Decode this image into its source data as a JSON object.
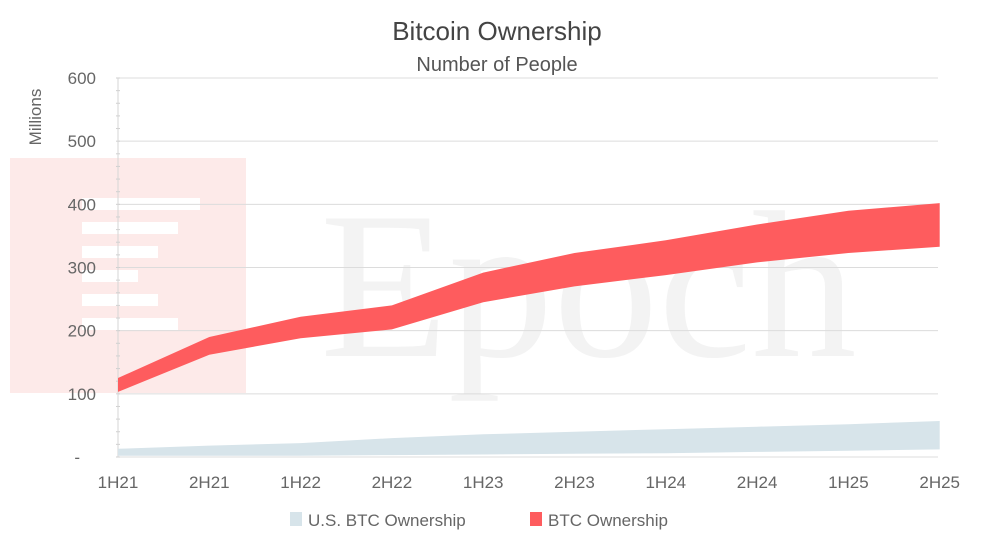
{
  "chart_data": {
    "type": "area",
    "title": "Bitcoin Ownership",
    "subtitle": "Number of People",
    "ylabel": "Millions",
    "xlabel": "",
    "categories": [
      "1H21",
      "2H21",
      "1H22",
      "2H22",
      "1H23",
      "2H23",
      "1H24",
      "2H24",
      "1H25",
      "2H25"
    ],
    "yticks": [
      "-",
      "100",
      "200",
      "300",
      "400",
      "500",
      "600"
    ],
    "ylim": [
      0,
      600
    ],
    "grid": true,
    "legend_position": "bottom",
    "series": [
      {
        "name": "U.S. BTC Ownership",
        "color": "#d7e4ea",
        "lower": [
          2,
          2,
          2,
          3,
          4,
          5,
          6,
          8,
          10,
          12
        ],
        "upper": [
          13,
          18,
          22,
          30,
          36,
          40,
          44,
          48,
          52,
          57
        ]
      },
      {
        "name": "BTC Ownership",
        "color": "#fe5c5e",
        "lower": [
          103,
          162,
          188,
          202,
          245,
          270,
          288,
          308,
          323,
          333
        ],
        "upper": [
          125,
          190,
          222,
          240,
          292,
          323,
          343,
          368,
          390,
          402
        ]
      }
    ],
    "watermark": "Epoch"
  }
}
